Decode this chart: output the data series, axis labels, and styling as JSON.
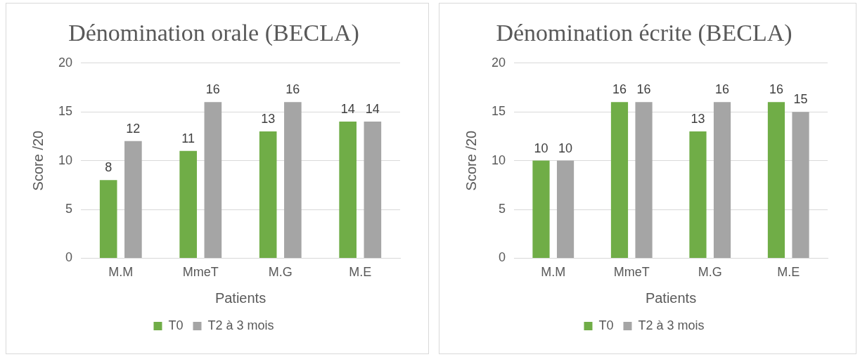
{
  "chart_data": [
    {
      "type": "bar",
      "title": "Dénomination orale (BECLA)",
      "xlabel": "Patients",
      "ylabel": "Score /20",
      "categories": [
        "M.M",
        "MmeT",
        "M.G",
        "M.E"
      ],
      "series": [
        {
          "name": "T0",
          "color": "#70ad47",
          "values": [
            8,
            11,
            13,
            14
          ]
        },
        {
          "name": "T2 à 3 mois",
          "color": "#a5a5a5",
          "values": [
            12,
            16,
            16,
            14
          ]
        }
      ],
      "ylim": [
        0,
        20
      ],
      "yticks": [
        0,
        5,
        10,
        15,
        20
      ],
      "grid": "y",
      "legend": "bottom",
      "data_labels": true
    },
    {
      "type": "bar",
      "title": "Dénomination écrite (BECLA)",
      "xlabel": "Patients",
      "ylabel": "Score /20",
      "categories": [
        "M.M",
        "MmeT",
        "M.G",
        "M.E"
      ],
      "series": [
        {
          "name": "T0",
          "color": "#70ad47",
          "values": [
            10,
            16,
            13,
            16
          ]
        },
        {
          "name": "T2 à 3 mois",
          "color": "#a5a5a5",
          "values": [
            10,
            16,
            16,
            15
          ]
        }
      ],
      "ylim": [
        0,
        20
      ],
      "yticks": [
        0,
        5,
        10,
        15,
        20
      ],
      "grid": "y",
      "legend": "bottom",
      "data_labels": true
    }
  ]
}
